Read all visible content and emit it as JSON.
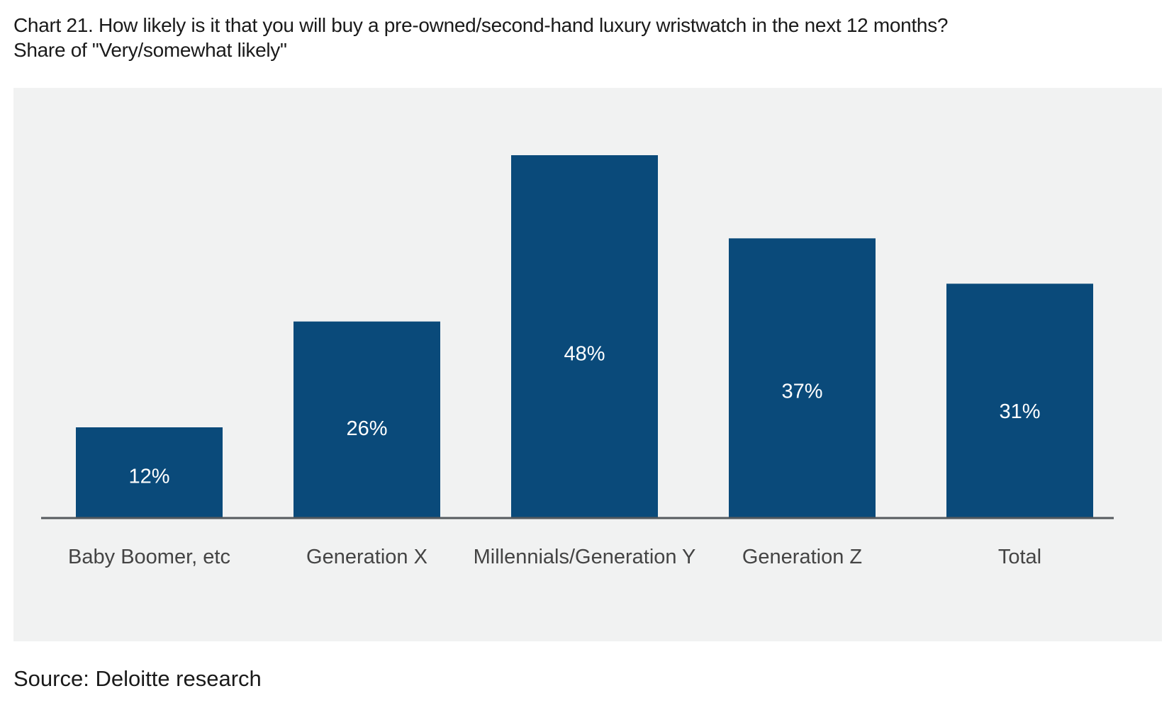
{
  "header": {
    "title": "Chart 21. How likely is it that you will buy a pre-owned/second-hand luxury wristwatch in the next 12 months?",
    "subtitle": "Share of \"Very/somewhat likely\""
  },
  "footer": {
    "source": "Source: Deloitte research"
  },
  "colors": {
    "bar": "#0a4a7a",
    "panel": "#f1f2f2",
    "axis": "#555a5e",
    "value_label": "#ffffff",
    "category_label": "#444444"
  },
  "chart_data": {
    "type": "bar",
    "title": "Chart 21. How likely is it that you will buy a pre-owned/second-hand luxury wristwatch in the next 12 months?",
    "subtitle": "Share of \"Very/somewhat likely\"",
    "categories": [
      "Baby Boomer, etc",
      "Generation X",
      "Millennials/Generation Y",
      "Generation Z",
      "Total"
    ],
    "values": [
      12,
      26,
      48,
      37,
      31
    ],
    "value_labels": [
      "12%",
      "26%",
      "48%",
      "37%",
      "31%"
    ],
    "unit": "%",
    "xlabel": "",
    "ylabel": "",
    "ylim": [
      0,
      48
    ],
    "grid": false,
    "legend": "none"
  }
}
